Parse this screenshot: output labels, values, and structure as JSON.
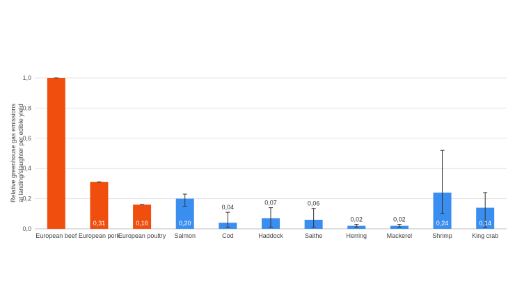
{
  "chart_data": {
    "type": "bar",
    "categories": [
      "European beef",
      "European pork",
      "European poultry",
      "Salmon",
      "Cod",
      "Haddock",
      "Saithe",
      "Herring",
      "Mackerel",
      "Shrimp",
      "King crab"
    ],
    "values": [
      1.0,
      0.31,
      0.16,
      0.2,
      0.04,
      0.07,
      0.06,
      0.02,
      0.02,
      0.24,
      0.14
    ],
    "data_labels": [
      "",
      "0,31",
      "0,16",
      "0,20",
      "0,04",
      "0,07",
      "0,06",
      "0,02",
      "0,02",
      "0,24",
      "0,14"
    ],
    "error_low": [
      1.0,
      0.31,
      0.16,
      0.15,
      0.01,
      0.01,
      0.01,
      0.01,
      0.01,
      0.1,
      0.01
    ],
    "error_high": [
      1.0,
      0.31,
      0.16,
      0.23,
      0.11,
      0.14,
      0.135,
      0.03,
      0.03,
      0.52,
      0.24
    ],
    "bar_colors": [
      "#F04E0E",
      "#F04E0E",
      "#F04E0E",
      "#3A8EF0",
      "#3A8EF0",
      "#3A8EF0",
      "#3A8EF0",
      "#3A8EF0",
      "#3A8EF0",
      "#3A8EF0",
      "#3A8EF0"
    ],
    "ylabel_lines": [
      "Relative greenhouse gas emissions",
      "at landing/slaughter per edible yield"
    ],
    "ylim": [
      0,
      1.0
    ],
    "yticks": [
      0.0,
      0.2,
      0.4,
      0.6,
      0.8,
      1.0
    ],
    "ytick_labels": [
      "0,0",
      "0,2",
      "0,4",
      "0,6",
      "0,8",
      "1,0"
    ],
    "grid": true
  }
}
